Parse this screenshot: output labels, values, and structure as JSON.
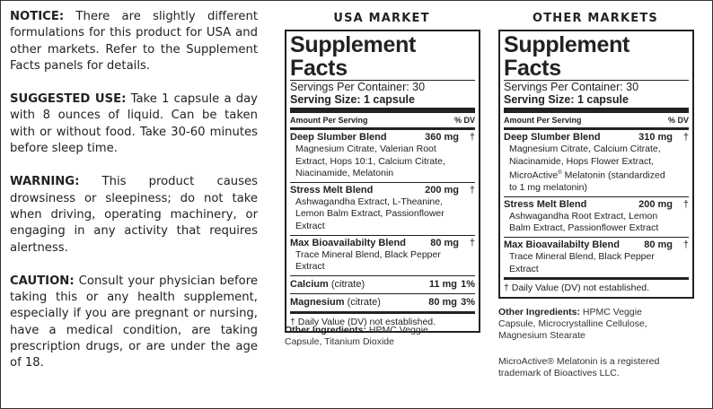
{
  "notes": {
    "notice_label": "NOTICE:",
    "notice_text": " There are slightly different formulations for this product for USA and other markets. Refer to the Supplement Facts panels for details.",
    "use_label": "SUGGESTED USE:",
    "use_text": " Take 1 capsule a day with 8 ounces of liquid. Can be taken with or without food. Take 30-60 minutes before sleep time.",
    "warning_label": "WARNING:",
    "warning_text": " This product causes drowsiness or sleepiness; do not take when driving, operating machinery, or engaging in any activity that requires alertness.",
    "caution_label": "CAUTION:",
    "caution_text": " Consult your physician before taking this or any health supplement, especially if you are pregnant or nursing, have a medical condition, are taking prescription drugs, or are under the age of 18."
  },
  "usa": {
    "market_title": "USA MARKET",
    "title": "Supplement Facts",
    "servings": "Servings Per Container: 30",
    "serving_size": "Serving Size: 1 capsule",
    "amount_label": "Amount Per Serving",
    "dv_label": "% DV",
    "blends": [
      {
        "name": "Deep Slumber Blend",
        "amount": "360 mg",
        "dv": "†",
        "ingredients": "Magnesium Citrate, Valerian Root Extract, Hops 10:1, Calcium Citrate, Niacinamide, Melatonin"
      },
      {
        "name": "Stress Melt Blend",
        "amount": "200 mg",
        "dv": "†",
        "ingredients": "Ashwagandha Extract, L-Theanine, Lemon Balm Extract, Passionflower Extract"
      },
      {
        "name": "Max Bioavailabilty Blend",
        "amount": "80 mg",
        "dv": "†",
        "ingredients": "Trace Mineral Blend, Black Pepper Extract"
      }
    ],
    "minerals": [
      {
        "name": "Calcium",
        "form": " (citrate)",
        "amount": "11 mg",
        "dv": "1%"
      },
      {
        "name": "Magnesium",
        "form": " (citrate)",
        "amount": "80 mg",
        "dv": "3%"
      }
    ],
    "dv_note": "† Daily Value (DV) not established.",
    "other_label": "Other Ingredients:",
    "other_text": " HPMC Veggie Capsule, Titanium Dioxide"
  },
  "other": {
    "market_title": "OTHER MARKETS",
    "title": "Supplement Facts",
    "servings": "Servings Per Container: 30",
    "serving_size": "Serving Size: 1 capsule",
    "amount_label": "Amount Per Serving",
    "dv_label": "% DV",
    "blends": [
      {
        "name": "Deep Slumber Blend",
        "amount": "310 mg",
        "dv": "†",
        "ingredients_a": "Magnesium Citrate, Calcium Citrate, Niacinamide, Hops Flower Extract, MicroActive",
        "ingredients_sup": "®",
        "ingredients_b": " Melatonin (standardized to 1 mg melatonin)"
      },
      {
        "name": "Stress Melt Blend",
        "amount": "200 mg",
        "dv": "†",
        "ingredients": "Ashwagandha Root Extract, Lemon Balm Extract, Passionflower Extract"
      },
      {
        "name": "Max Bioavailabilty Blend",
        "amount": "80 mg",
        "dv": "†",
        "ingredients": "Trace Mineral Blend, Black Pepper Extract"
      }
    ],
    "dv_note": "† Daily Value (DV) not established.",
    "other_label": "Other Ingredients:",
    "other_text": " HPMC Veggie Capsule, Microcrystalline Cellulose, Magnesium Stearate",
    "trademark": "MicroActive® Melatonin is a registered trademark of Bioactives LLC."
  }
}
